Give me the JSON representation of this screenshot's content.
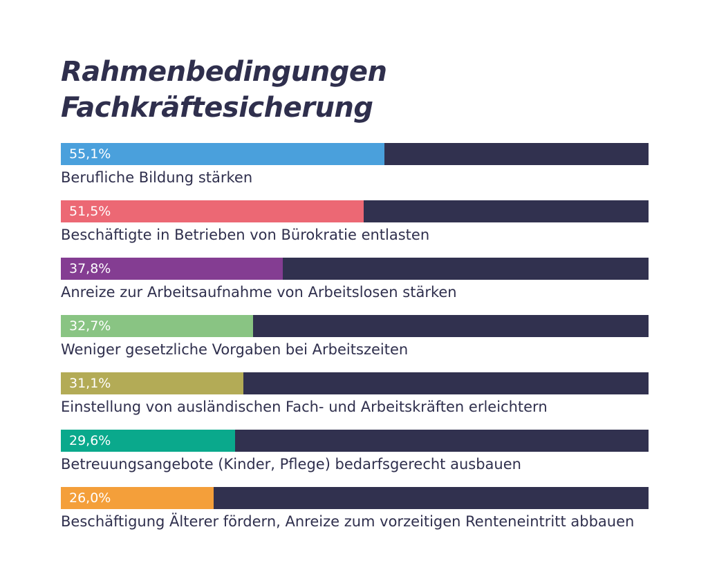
{
  "title": {
    "line1": "Rahmenbedingungen",
    "line2": "Fachkräftesicherung"
  },
  "colors": {
    "track": "#31314f",
    "text": "#2f2f4d"
  },
  "chart_data": {
    "type": "bar",
    "orientation": "horizontal",
    "title": "Rahmenbedingungen Fachkräftesicherung",
    "unit": "%",
    "xlim": [
      0,
      100
    ],
    "grid": false,
    "categories": [
      "Berufliche Bildung stärken",
      "Beschäftigte in Betrieben von Bürokratie entlasten",
      "Anreize zur Arbeitsaufnahme von Arbeitslosen stärken",
      "Weniger gesetzliche Vorgaben bei Arbeitszeiten",
      "Einstellung von ausländischen Fach- und Arbeitskräften erleichtern",
      "Betreuungsangebote (Kinder, Pflege) bedarfsgerecht ausbauen",
      "Beschäftigung Älterer fördern, Anreize zum vorzeitigen Renteneintritt abbauen"
    ],
    "values": [
      55.1,
      51.5,
      37.8,
      32.7,
      31.1,
      29.6,
      26.0
    ],
    "value_labels": [
      "55,1%",
      "51,5%",
      "37,8%",
      "32,7%",
      "31,1%",
      "29,6%",
      "26,0%"
    ],
    "bar_colors": [
      "#4aa0dc",
      "#ec6874",
      "#843d92",
      "#89c483",
      "#b3ab56",
      "#0aa98c",
      "#f49f3a"
    ]
  }
}
